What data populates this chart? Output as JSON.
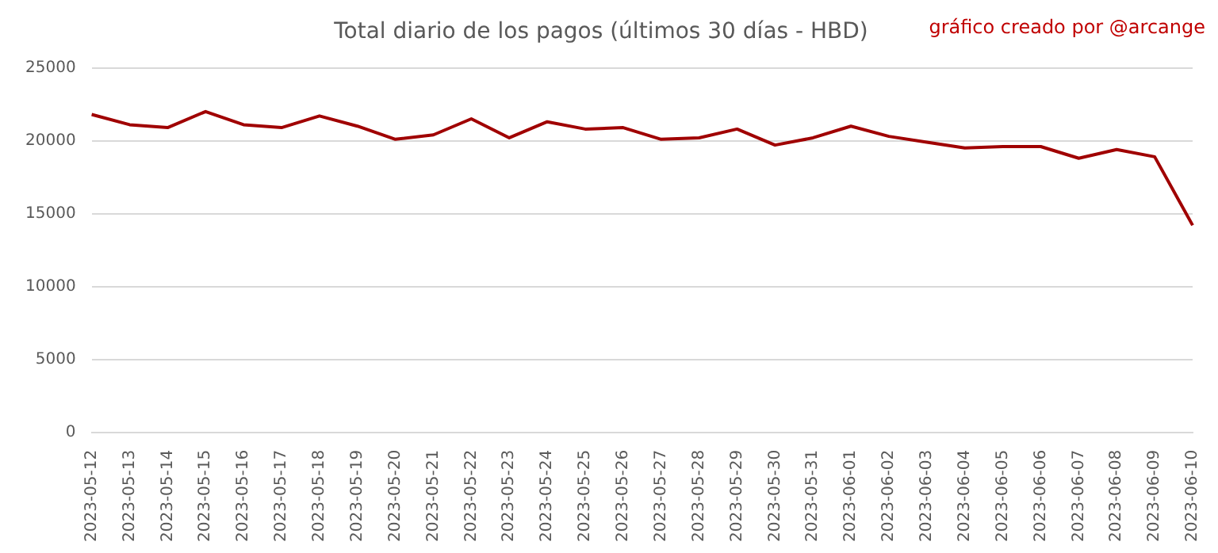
{
  "chart_data": {
    "type": "line",
    "title": "Total diario de los pagos (últimos 30 días - HBD)",
    "annotations": [
      "gráfico creado por @arcange"
    ],
    "categories": [
      "2023-05-12",
      "2023-05-13",
      "2023-05-14",
      "2023-05-15",
      "2023-05-16",
      "2023-05-17",
      "2023-05-18",
      "2023-05-19",
      "2023-05-20",
      "2023-05-21",
      "2023-05-22",
      "2023-05-23",
      "2023-05-24",
      "2023-05-25",
      "2023-05-26",
      "2023-05-27",
      "2023-05-28",
      "2023-05-29",
      "2023-05-30",
      "2023-05-31",
      "2023-06-01",
      "2023-06-02",
      "2023-06-03",
      "2023-06-04",
      "2023-06-05",
      "2023-06-06",
      "2023-06-07",
      "2023-06-08",
      "2023-06-09",
      "2023-06-10"
    ],
    "series": [
      {
        "color": "#a00000",
        "values": [
          21800,
          21100,
          20900,
          22000,
          21100,
          20900,
          21700,
          21000,
          20100,
          20400,
          21500,
          20200,
          21300,
          20800,
          20900,
          20100,
          20200,
          20800,
          19700,
          20200,
          21000,
          20300,
          19900,
          19500,
          19600,
          19600,
          18800,
          19400,
          18900,
          14200
        ]
      }
    ],
    "ylim": [
      0,
      25000
    ],
    "yticks": [
      0,
      5000,
      10000,
      15000,
      20000,
      25000
    ],
    "grid": "y",
    "legend": false,
    "marker": "none",
    "line_style": "solid"
  }
}
